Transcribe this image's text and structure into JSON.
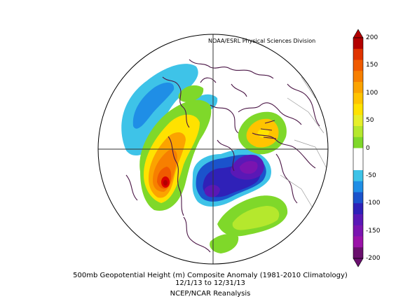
{
  "credit": "NOAA/ESRL Physical Sciences Division",
  "caption": {
    "line1": "500mb Geopotential Height (m) Composite Anomaly (1981-2010 Climatology)",
    "line2": "12/1/13  to 12/31/13",
    "line3": "NCEP/NCAR Reanalysis"
  },
  "colorbar": {
    "ticks": [
      "200",
      "150",
      "100",
      "50",
      "0",
      "-50",
      "-100",
      "-150",
      "-200"
    ],
    "colors": [
      "#b30000",
      "#e03300",
      "#f05a00",
      "#f77f00",
      "#fba300",
      "#ffc400",
      "#ffe200",
      "#e6ef2a",
      "#b5e82d",
      "#7fd82a",
      "#ffffff",
      "#ffffff",
      "#3ec3e8",
      "#1f8ee6",
      "#1b53cc",
      "#2f21b8",
      "#5a18b6",
      "#7a14b0",
      "#9a12a8",
      "#6a0f6e"
    ]
  },
  "anomalies": [
    {
      "name": "pacific-blue",
      "color": "#3ec3e8"
    },
    {
      "name": "pacific-blue-deep",
      "color": "#1f8ee6"
    },
    {
      "name": "west-ridge",
      "color": "#7fd82a"
    },
    {
      "name": "west-ridge-yellow",
      "color": "#ffe200"
    },
    {
      "name": "west-ridge-orange",
      "color": "#f77f00"
    },
    {
      "name": "west-ridge-red",
      "color": "#d90000"
    },
    {
      "name": "central-trough",
      "color": "#1b53cc"
    },
    {
      "name": "central-trough-deep",
      "color": "#5a18b6"
    },
    {
      "name": "atlantic-green",
      "color": "#b5e82d"
    },
    {
      "name": "europe-green",
      "color": "#7fd82a"
    },
    {
      "name": "europe-yellow",
      "color": "#ffc400"
    }
  ]
}
